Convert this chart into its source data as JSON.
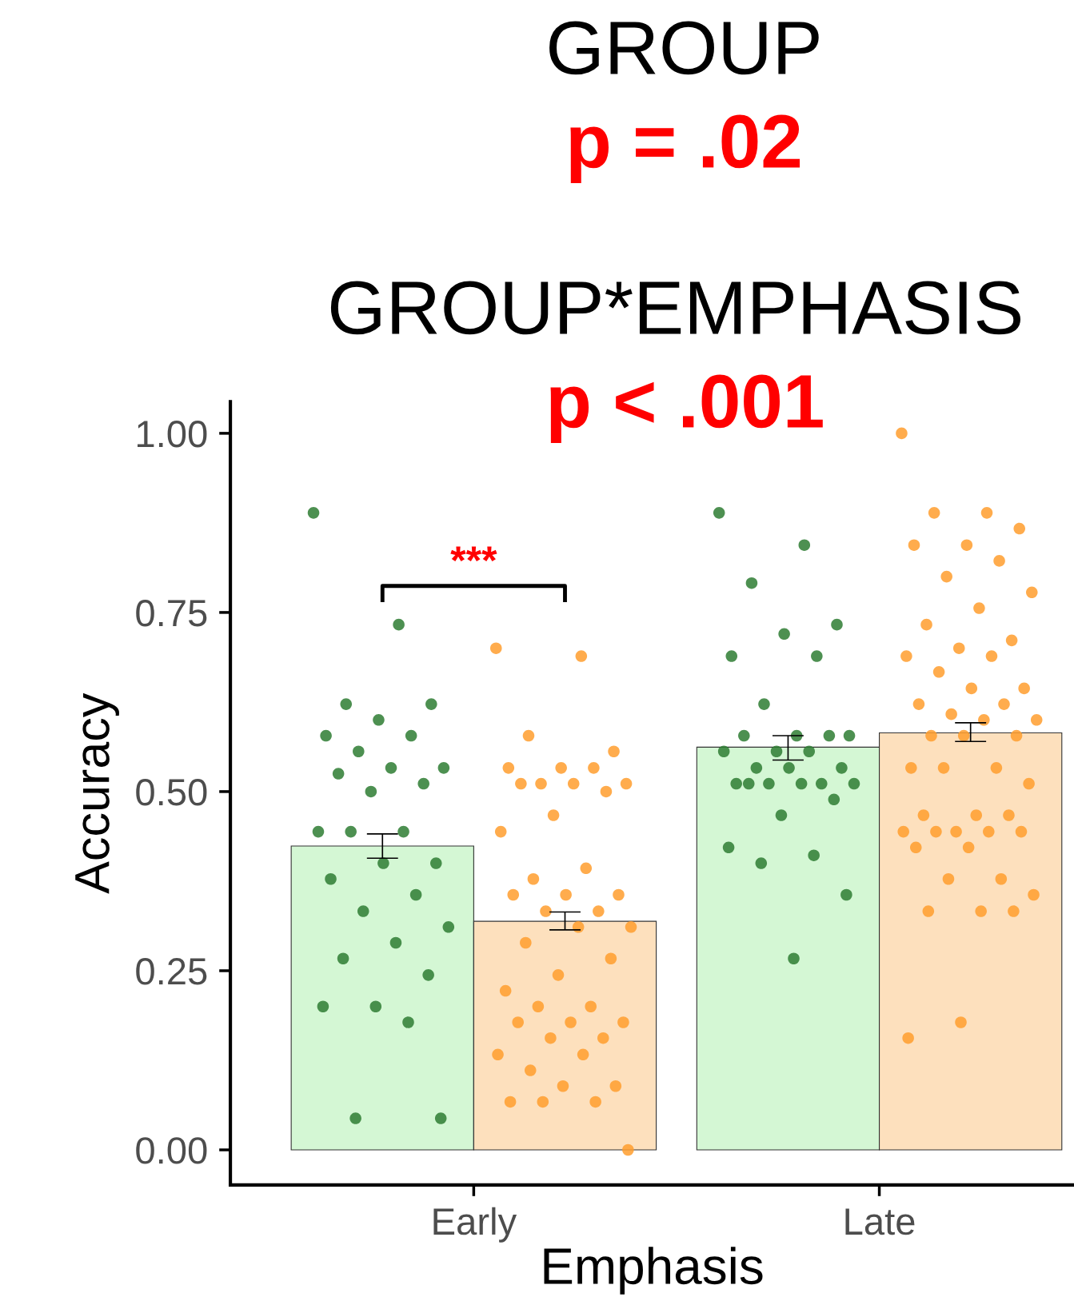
{
  "chart_data": {
    "type": "bar",
    "title": "GROUP",
    "xlabel": "Emphasis",
    "ylabel": "Accuracy",
    "categories": [
      "Early",
      "Late"
    ],
    "ylim": [
      -0.049,
      1.044
    ],
    "yticks": [
      {
        "value": 0,
        "label": "0.00"
      },
      {
        "value": 0.25,
        "label": "0.25"
      },
      {
        "value": 0.5,
        "label": "0.50"
      },
      {
        "value": 0.75,
        "label": "0.75"
      },
      {
        "value": 1,
        "label": "1.00"
      }
    ],
    "series": [
      {
        "color": "#d4f7d4",
        "values": [
          0.424,
          0.562
        ],
        "errors": [
          [
            0.407,
            0.441
          ],
          [
            0.544,
            0.578
          ]
        ]
      },
      {
        "color": "#fde0bd",
        "values": [
          0.319,
          0.582
        ],
        "errors": [
          [
            0.307,
            0.332
          ],
          [
            0.57,
            0.596
          ]
        ]
      },
      {
        "type": "scatter",
        "color": "#2e7d32",
        "x": [
          "Early",
          "Early",
          "Early",
          "Early",
          "Early",
          "Early",
          "Early",
          "Early",
          "Early",
          "Early",
          "Early",
          "Early",
          "Early",
          "Early",
          "Early",
          "Early",
          "Early",
          "Early",
          "Early",
          "Early",
          "Early",
          "Early",
          "Early",
          "Early",
          "Early",
          "Early",
          "Early",
          "Early",
          "Early",
          "Early",
          "Late",
          "Late",
          "Late",
          "Late",
          "Late",
          "Late",
          "Late",
          "Late",
          "Late",
          "Late",
          "Late",
          "Late",
          "Late",
          "Late",
          "Late",
          "Late",
          "Late",
          "Late",
          "Late",
          "Late",
          "Late",
          "Late",
          "Late",
          "Late",
          "Late",
          "Late",
          "Late",
          "Late",
          "Late",
          "Late",
          "Late"
        ],
        "values": [
          0.889,
          0.733,
          0.622,
          0.622,
          0.6,
          0.578,
          0.578,
          0.556,
          0.533,
          0.533,
          0.525,
          0.511,
          0.5,
          0.444,
          0.444,
          0.444,
          0.4,
          0.4,
          0.378,
          0.356,
          0.333,
          0.311,
          0.289,
          0.267,
          0.244,
          0.2,
          0.2,
          0.178,
          0.044,
          0.044,
          0.889,
          0.844,
          0.791,
          0.733,
          0.72,
          0.689,
          0.689,
          0.622,
          0.578,
          0.578,
          0.578,
          0.578,
          0.556,
          0.556,
          0.556,
          0.533,
          0.533,
          0.533,
          0.511,
          0.511,
          0.511,
          0.511,
          0.511,
          0.511,
          0.489,
          0.467,
          0.422,
          0.411,
          0.4,
          0.356,
          0.267
        ]
      },
      {
        "type": "scatter",
        "color": "#ff9d2e",
        "x": [
          "Early",
          "Early",
          "Early",
          "Early",
          "Early",
          "Early",
          "Early",
          "Early",
          "Early",
          "Early",
          "Early",
          "Early",
          "Early",
          "Early",
          "Early",
          "Early",
          "Early",
          "Early",
          "Early",
          "Early",
          "Early",
          "Early",
          "Early",
          "Early",
          "Early",
          "Early",
          "Early",
          "Early",
          "Early",
          "Early",
          "Early",
          "Early",
          "Early",
          "Early",
          "Early",
          "Early",
          "Early",
          "Early",
          "Early",
          "Early",
          "Early",
          "Early",
          "Early",
          "Late",
          "Late",
          "Late",
          "Late",
          "Late",
          "Late",
          "Late",
          "Late",
          "Late",
          "Late",
          "Late",
          "Late",
          "Late",
          "Late",
          "Late",
          "Late",
          "Late",
          "Late",
          "Late",
          "Late",
          "Late",
          "Late",
          "Late",
          "Late",
          "Late",
          "Late",
          "Late",
          "Late",
          "Late",
          "Late",
          "Late",
          "Late",
          "Late",
          "Late",
          "Late",
          "Late",
          "Late",
          "Late",
          "Late",
          "Late",
          "Late",
          "Late",
          "Late",
          "Late",
          "Late",
          "Late",
          "Late",
          "Late"
        ],
        "values": [
          0.7,
          0.689,
          0.578,
          0.556,
          0.533,
          0.533,
          0.533,
          0.511,
          0.511,
          0.511,
          0.511,
          0.5,
          0.467,
          0.444,
          0.393,
          0.378,
          0.356,
          0.356,
          0.356,
          0.333,
          0.333,
          0.311,
          0.311,
          0.289,
          0.267,
          0.244,
          0.222,
          0.2,
          0.2,
          0.178,
          0.178,
          0.178,
          0.156,
          0.156,
          0.133,
          0.133,
          0.111,
          0.089,
          0.089,
          0.067,
          0.067,
          0.067,
          0,
          1,
          0.889,
          0.889,
          0.867,
          0.844,
          0.844,
          0.822,
          0.8,
          0.778,
          0.756,
          0.733,
          0.711,
          0.7,
          0.689,
          0.689,
          0.667,
          0.644,
          0.644,
          0.622,
          0.622,
          0.608,
          0.6,
          0.6,
          0.578,
          0.578,
          0.578,
          0.533,
          0.533,
          0.533,
          0.511,
          0.467,
          0.467,
          0.467,
          0.444,
          0.444,
          0.444,
          0.444,
          0.444,
          0.422,
          0.422,
          0.378,
          0.378,
          0.356,
          0.333,
          0.333,
          0.333,
          0.178,
          0.156
        ]
      }
    ],
    "marker": "circle",
    "annotations": [
      "p = .02",
      "GROUP*EMPHASIS",
      "p < .001",
      "***"
    ]
  }
}
